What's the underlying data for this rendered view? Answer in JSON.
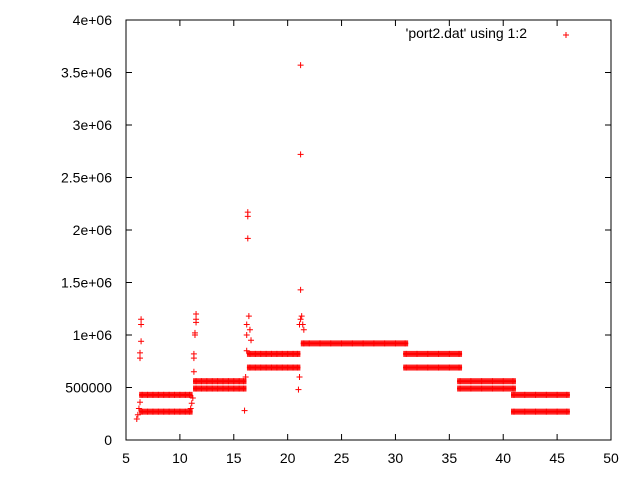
{
  "chart_data": {
    "type": "scatter",
    "title": "",
    "xlabel": "",
    "ylabel": "",
    "xlim": [
      5,
      50
    ],
    "ylim": [
      0,
      4000000
    ],
    "x_ticks": [
      5,
      10,
      15,
      20,
      25,
      30,
      35,
      40,
      45,
      50
    ],
    "x_tick_labels": [
      "5",
      "10",
      "15",
      "20",
      "25",
      "30",
      "35",
      "40",
      "45",
      "50"
    ],
    "y_ticks": [
      0,
      500000,
      1000000,
      1500000,
      2000000,
      2500000,
      3000000,
      3500000,
      4000000
    ],
    "y_tick_labels": [
      "0",
      "500000",
      "1e+06",
      "1.5e+06",
      "2e+06",
      "2.5e+06",
      "3e+06",
      "3.5e+06",
      "4e+06"
    ],
    "grid": false,
    "legend_position": "top-right",
    "marker": "+",
    "color": "#ff0000",
    "series": [
      {
        "name": "'port2.dat' using 1:2",
        "points": [
          [
            6.0,
            200000
          ],
          [
            6.1,
            240000
          ],
          [
            6.2,
            300000
          ],
          [
            6.3,
            360000
          ],
          [
            6.3,
            780000
          ],
          [
            6.3,
            830000
          ],
          [
            6.4,
            940000
          ],
          [
            6.4,
            1100000
          ],
          [
            6.4,
            1150000
          ],
          [
            6.5,
            270000
          ],
          [
            7.0,
            270000
          ],
          [
            7.5,
            270000
          ],
          [
            8.0,
            270000
          ],
          [
            8.5,
            270000
          ],
          [
            9.0,
            270000
          ],
          [
            9.5,
            270000
          ],
          [
            10.0,
            270000
          ],
          [
            10.5,
            270000
          ],
          [
            10.9,
            270000
          ],
          [
            6.5,
            430000
          ],
          [
            7.0,
            430000
          ],
          [
            7.5,
            430000
          ],
          [
            8.0,
            430000
          ],
          [
            8.5,
            430000
          ],
          [
            9.0,
            430000
          ],
          [
            9.5,
            430000
          ],
          [
            10.0,
            430000
          ],
          [
            10.5,
            430000
          ],
          [
            10.9,
            430000
          ],
          [
            11.0,
            300000
          ],
          [
            11.1,
            350000
          ],
          [
            11.2,
            400000
          ],
          [
            11.3,
            650000
          ],
          [
            11.3,
            780000
          ],
          [
            11.3,
            820000
          ],
          [
            11.4,
            1000000
          ],
          [
            11.4,
            1020000
          ],
          [
            11.5,
            1120000
          ],
          [
            11.5,
            1150000
          ],
          [
            11.5,
            1200000
          ],
          [
            11.5,
            490000
          ],
          [
            12.0,
            490000
          ],
          [
            12.5,
            490000
          ],
          [
            13.0,
            490000
          ],
          [
            13.5,
            490000
          ],
          [
            14.0,
            490000
          ],
          [
            14.5,
            490000
          ],
          [
            15.0,
            490000
          ],
          [
            15.5,
            490000
          ],
          [
            15.9,
            490000
          ],
          [
            11.5,
            560000
          ],
          [
            12.0,
            560000
          ],
          [
            12.5,
            560000
          ],
          [
            13.0,
            560000
          ],
          [
            13.5,
            560000
          ],
          [
            14.0,
            560000
          ],
          [
            14.5,
            560000
          ],
          [
            15.0,
            560000
          ],
          [
            15.5,
            560000
          ],
          [
            15.9,
            560000
          ],
          [
            16.0,
            280000
          ],
          [
            16.1,
            600000
          ],
          [
            16.2,
            850000
          ],
          [
            16.2,
            1000000
          ],
          [
            16.2,
            1100000
          ],
          [
            16.3,
            1920000
          ],
          [
            16.3,
            2130000
          ],
          [
            16.3,
            2170000
          ],
          [
            16.4,
            1180000
          ],
          [
            16.5,
            1050000
          ],
          [
            16.6,
            950000
          ],
          [
            16.5,
            690000
          ],
          [
            17.0,
            690000
          ],
          [
            17.5,
            690000
          ],
          [
            18.0,
            690000
          ],
          [
            18.5,
            690000
          ],
          [
            19.0,
            690000
          ],
          [
            19.5,
            690000
          ],
          [
            20.0,
            690000
          ],
          [
            20.5,
            690000
          ],
          [
            20.9,
            690000
          ],
          [
            16.5,
            820000
          ],
          [
            17.0,
            820000
          ],
          [
            17.5,
            820000
          ],
          [
            18.0,
            820000
          ],
          [
            18.5,
            820000
          ],
          [
            19.0,
            820000
          ],
          [
            19.5,
            820000
          ],
          [
            20.0,
            820000
          ],
          [
            20.5,
            820000
          ],
          [
            20.9,
            820000
          ],
          [
            21.0,
            480000
          ],
          [
            21.1,
            600000
          ],
          [
            21.1,
            1100000
          ],
          [
            21.2,
            1150000
          ],
          [
            21.2,
            1430000
          ],
          [
            21.2,
            2720000
          ],
          [
            21.2,
            3570000
          ],
          [
            21.3,
            1180000
          ],
          [
            21.4,
            1100000
          ],
          [
            21.5,
            1050000
          ],
          [
            21.5,
            920000
          ],
          [
            22.0,
            920000
          ],
          [
            23.0,
            920000
          ],
          [
            24.0,
            920000
          ],
          [
            25.0,
            920000
          ],
          [
            26.0,
            920000
          ],
          [
            27.0,
            920000
          ],
          [
            28.0,
            920000
          ],
          [
            29.0,
            920000
          ],
          [
            30.0,
            920000
          ],
          [
            30.9,
            920000
          ],
          [
            31.0,
            690000
          ],
          [
            32.0,
            690000
          ],
          [
            33.0,
            690000
          ],
          [
            34.0,
            690000
          ],
          [
            35.0,
            690000
          ],
          [
            35.9,
            690000
          ],
          [
            31.0,
            820000
          ],
          [
            32.0,
            820000
          ],
          [
            33.0,
            820000
          ],
          [
            34.0,
            820000
          ],
          [
            35.0,
            820000
          ],
          [
            35.9,
            820000
          ],
          [
            36.0,
            490000
          ],
          [
            37.0,
            490000
          ],
          [
            38.0,
            490000
          ],
          [
            39.0,
            490000
          ],
          [
            40.0,
            490000
          ],
          [
            40.9,
            490000
          ],
          [
            36.0,
            560000
          ],
          [
            37.0,
            560000
          ],
          [
            38.0,
            560000
          ],
          [
            39.0,
            560000
          ],
          [
            40.0,
            560000
          ],
          [
            40.9,
            560000
          ],
          [
            41.0,
            270000
          ],
          [
            42.0,
            270000
          ],
          [
            43.0,
            270000
          ],
          [
            44.0,
            270000
          ],
          [
            45.0,
            270000
          ],
          [
            45.9,
            270000
          ],
          [
            41.0,
            430000
          ],
          [
            42.0,
            430000
          ],
          [
            43.0,
            430000
          ],
          [
            44.0,
            430000
          ],
          [
            45.0,
            430000
          ],
          [
            45.9,
            430000
          ]
        ],
        "bands": [
          {
            "x_start": 6.5,
            "x_end": 10.9,
            "y": 270000
          },
          {
            "x_start": 6.5,
            "x_end": 10.9,
            "y": 430000
          },
          {
            "x_start": 11.5,
            "x_end": 15.9,
            "y": 490000
          },
          {
            "x_start": 11.5,
            "x_end": 15.9,
            "y": 560000
          },
          {
            "x_start": 16.5,
            "x_end": 20.9,
            "y": 690000
          },
          {
            "x_start": 16.5,
            "x_end": 20.9,
            "y": 820000
          },
          {
            "x_start": 21.5,
            "x_end": 30.9,
            "y": 920000
          },
          {
            "x_start": 31.0,
            "x_end": 35.9,
            "y": 690000
          },
          {
            "x_start": 31.0,
            "x_end": 35.9,
            "y": 820000
          },
          {
            "x_start": 36.0,
            "x_end": 40.9,
            "y": 490000
          },
          {
            "x_start": 36.0,
            "x_end": 40.9,
            "y": 560000
          },
          {
            "x_start": 41.0,
            "x_end": 45.9,
            "y": 270000
          },
          {
            "x_start": 41.0,
            "x_end": 45.9,
            "y": 430000
          }
        ]
      }
    ]
  }
}
